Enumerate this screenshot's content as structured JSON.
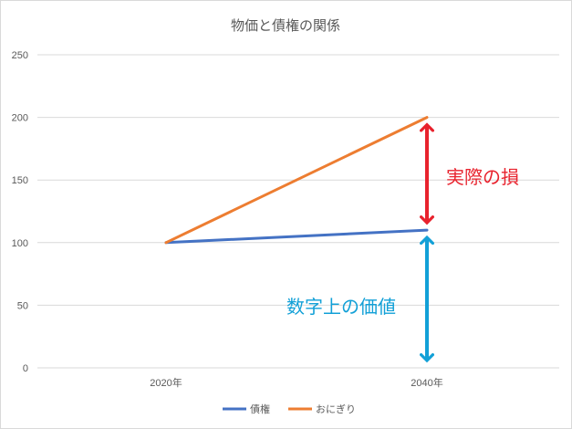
{
  "chart_data": {
    "type": "line",
    "title": "物価と債権の関係",
    "categories": [
      "2020年",
      "2040年"
    ],
    "series": [
      {
        "name": "債権",
        "values": [
          100,
          110
        ],
        "color": "#4472c4"
      },
      {
        "name": "おにぎり",
        "values": [
          100,
          200
        ],
        "color": "#ed7d31"
      }
    ],
    "y_ticks": [
      "0",
      "50",
      "100",
      "150",
      "200",
      "250"
    ],
    "ylim": [
      0,
      250
    ],
    "grid": true,
    "legend": "bottom",
    "annotations": [
      {
        "text": "実際の損",
        "color": "#e8222d",
        "from": 110,
        "to": 200
      },
      {
        "text": "数字上の価値",
        "color": "#12a0d7",
        "from": 0,
        "to": 110
      }
    ]
  }
}
